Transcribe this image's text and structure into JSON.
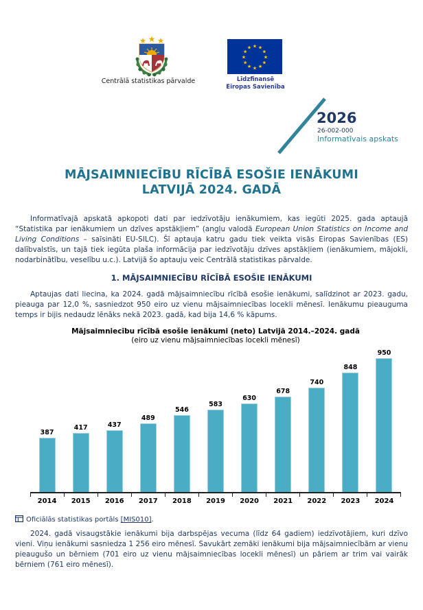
{
  "header": {
    "csp_logo_label": "Centrālā statistikas pārvalde",
    "eu_funding_label_line1": "Līdzfinansē",
    "eu_funding_label_line2": "Eiropas Savienība"
  },
  "publication": {
    "year": "2026",
    "code": "26-002-000",
    "type": "Informatīvais apskats"
  },
  "title": {
    "line1": "MĀJSAIMNIECĪBU RĪCĪBĀ ESOŠIE IENĀKUMI",
    "line2": "LATVIJĀ 2024. GADĀ"
  },
  "intro_paragraph": {
    "runs": [
      {
        "text": "Informatīvajā apskatā apkopoti dati par iedzīvotāju ienākumiem, kas iegūti 2025. gada aptaujā “Statistika par ienākumiem un dzīves apstākļiem” (angļu valodā "
      },
      {
        "text": "European Union Statistics on Income and Living Conditions",
        "italic": true
      },
      {
        "text": " – saīsināti EU-SILC). Šī aptauja katru gadu tiek veikta visās Eiropas Savienības (ES) dalībvalstīs, un tajā tiek iegūta plaša informācija par iedzīvotāju dzīves apstākļiem (ienākumiem, mājokli, nodarbinātību, veselību u.c.). Latvijā šo aptauju veic Centrālā statistikas pārvalde."
      }
    ]
  },
  "section1": {
    "heading": "1. MĀJSAIMNIECĪBU RĪCĪBĀ ESOŠIE IENĀKUMI",
    "paragraph": "Aptaujas dati liecina, ka 2024. gadā mājsaimniecību rīcībā esošie ienākumi, salīdzinot ar 2023. gadu, pieauga par 12,0 %, sasniedzot 950 eiro uz vienu mājsaimniecības locekli mēnesī. Ienākumu pieauguma temps ir bijis nedaudz lēnāks nekā 2023. gadā, kad bija 14,6 % kāpums."
  },
  "chart_data": {
    "type": "bar",
    "title": "Mājsaimniecību rīcībā esošie ienākumi (neto) Latvijā 2014.–2024. gadā",
    "subtitle": "(eiro uz vienu mājsaimniecības locekli mēnesī)",
    "categories": [
      "2014",
      "2015",
      "2016",
      "2017",
      "2018",
      "2019",
      "2020",
      "2021",
      "2022",
      "2023",
      "2024"
    ],
    "values": [
      387,
      417,
      437,
      489,
      546,
      583,
      630,
      678,
      740,
      848,
      950
    ],
    "ylim": [
      0,
      950
    ],
    "gridlines": false,
    "y_axis_visible": false,
    "data_labels": true,
    "bar_color": "#4BACC6"
  },
  "source_line": {
    "prefix": "Oficiālās statistikas portāls ",
    "link": "[MIS010]",
    "suffix": "."
  },
  "closing_paragraph": "2024. gadā visaugstākie ienākumi bija darbspējas vecuma (līdz 64 gadiem) iedzīvotājiem, kuri dzīvo vieni. Viņu ienākumi sasniedza 1 256 eiro mēnesī. Savukārt zemāki ienākumi bija mājsaimniecībām ar vienu pieaugušo un bērniem (701 eiro uz vienu mājsaimniecības locekli mēnesī) un pāriem ar trim vai vairāk bērniem (761 eiro mēnesī).",
  "colors": {
    "body_text": "#1F3864",
    "title_teal": "#1F7391",
    "accent_teal": "#31849B",
    "bar_fill": "#4BACC6",
    "eu_flag_blue": "#003399",
    "eu_star_gold": "#FFCC00"
  }
}
